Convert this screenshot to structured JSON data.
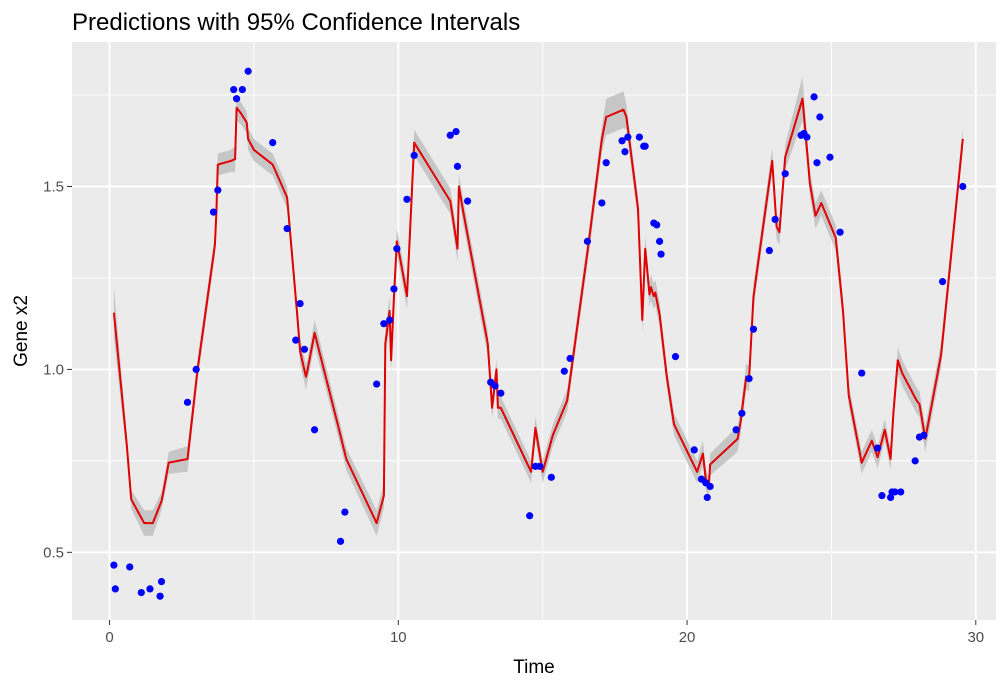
{
  "chart_data": {
    "type": "line",
    "title": "Predictions with 95% Confidence Intervals",
    "xlabel": "Time",
    "ylabel": "Gene x2",
    "xlim": [
      -1.3,
      30.7
    ],
    "ylim": [
      0.315,
      1.895
    ],
    "x_ticks": [
      0,
      10,
      20,
      30
    ],
    "x_tick_labels": [
      "0",
      "10",
      "20",
      "30"
    ],
    "y_ticks": [
      0.5,
      1.0,
      1.5
    ],
    "y_tick_labels": [
      "0.5",
      "1.0",
      "1.5"
    ],
    "grid": true,
    "legend": "none",
    "colors": {
      "panel_background": "#ebebeb",
      "grid": "#ffffff",
      "points": "#0000ff",
      "prediction_line": "#e00000",
      "ribbon": "#c2c2c2"
    },
    "series": [
      {
        "type": "ribbon_line",
        "x": [
          0.15,
          0.6,
          0.75,
          1.2,
          1.5,
          1.8,
          1.85,
          2.05,
          2.7,
          3.05,
          3.65,
          3.7,
          3.75,
          4.2,
          4.35,
          4.4,
          4.55,
          4.75,
          4.8,
          5.0,
          5.65,
          6.15,
          6.5,
          6.6,
          6.8,
          6.85,
          7.1,
          7.95,
          8.2,
          9.25,
          9.5,
          9.55,
          9.7,
          9.75,
          9.85,
          9.95,
          10.05,
          10.3,
          10.55,
          11.8,
          12.05,
          12.1,
          12.25,
          13.1,
          13.25,
          13.4,
          13.45,
          13.55,
          14.6,
          14.75,
          15.0,
          15.35,
          15.85,
          16.6,
          17.05,
          17.2,
          17.8,
          17.9,
          18.3,
          18.45,
          18.55,
          18.7,
          18.75,
          18.85,
          18.9,
          19.05,
          19.3,
          19.55,
          20.35,
          20.55,
          20.65,
          20.75,
          20.8,
          21.75,
          21.85,
          22.05,
          22.15,
          22.3,
          22.95,
          23.1,
          23.2,
          23.4,
          24.0,
          24.2,
          24.25,
          24.45,
          24.65,
          25.15,
          25.4,
          25.6,
          26.05,
          26.4,
          26.6,
          26.85,
          27.05,
          27.15,
          27.3,
          27.45,
          27.95,
          28.05,
          28.25,
          28.8,
          29.55
        ],
        "y": [
          1.155,
          0.79,
          0.645,
          0.58,
          0.58,
          0.64,
          0.66,
          0.745,
          0.755,
          1.0,
          1.34,
          1.43,
          1.56,
          1.57,
          1.575,
          1.715,
          1.7,
          1.675,
          1.63,
          1.6,
          1.56,
          1.47,
          1.15,
          1.05,
          0.98,
          0.995,
          1.1,
          0.835,
          0.755,
          0.58,
          0.655,
          1.07,
          1.16,
          1.025,
          1.2,
          1.35,
          1.31,
          1.2,
          1.62,
          1.46,
          1.33,
          1.5,
          1.43,
          1.07,
          0.895,
          1.0,
          0.895,
          0.895,
          0.72,
          0.84,
          0.72,
          0.82,
          0.915,
          1.35,
          1.63,
          1.69,
          1.71,
          1.69,
          1.44,
          1.135,
          1.33,
          1.205,
          1.225,
          1.2,
          1.21,
          1.15,
          0.98,
          0.85,
          0.72,
          0.77,
          0.7,
          0.675,
          0.74,
          0.81,
          0.855,
          0.98,
          0.975,
          1.2,
          1.57,
          1.39,
          1.375,
          1.58,
          1.74,
          1.56,
          1.51,
          1.42,
          1.455,
          1.36,
          1.16,
          0.93,
          0.745,
          0.805,
          0.76,
          0.835,
          0.755,
          0.885,
          1.025,
          0.99,
          0.915,
          0.905,
          0.81,
          1.04,
          1.63
        ],
        "ci_halfwidth": [
          0.07,
          0.03,
          0.025,
          0.035,
          0.035,
          0.025,
          0.025,
          0.03,
          0.035,
          0.03,
          0.03,
          0.03,
          0.03,
          0.03,
          0.035,
          0.035,
          0.03,
          0.03,
          0.03,
          0.03,
          0.03,
          0.03,
          0.03,
          0.035,
          0.035,
          0.03,
          0.035,
          0.03,
          0.03,
          0.035,
          0.035,
          0.04,
          0.04,
          0.035,
          0.035,
          0.035,
          0.035,
          0.035,
          0.035,
          0.035,
          0.035,
          0.035,
          0.035,
          0.035,
          0.03,
          0.03,
          0.03,
          0.03,
          0.03,
          0.03,
          0.03,
          0.03,
          0.03,
          0.035,
          0.035,
          0.05,
          0.05,
          0.035,
          0.035,
          0.035,
          0.035,
          0.035,
          0.035,
          0.035,
          0.035,
          0.035,
          0.03,
          0.03,
          0.03,
          0.035,
          0.03,
          0.03,
          0.03,
          0.035,
          0.035,
          0.035,
          0.035,
          0.035,
          0.035,
          0.035,
          0.035,
          0.035,
          0.06,
          0.035,
          0.035,
          0.035,
          0.035,
          0.035,
          0.035,
          0.03,
          0.03,
          0.03,
          0.03,
          0.03,
          0.03,
          0.035,
          0.035,
          0.035,
          0.035,
          0.035,
          0.035,
          0.035,
          0.03
        ]
      },
      {
        "type": "scatter",
        "points": [
          [
            0.15,
            0.465
          ],
          [
            0.2,
            0.4
          ],
          [
            0.7,
            0.46
          ],
          [
            1.1,
            0.39
          ],
          [
            1.4,
            0.4
          ],
          [
            1.75,
            0.38
          ],
          [
            1.8,
            0.42
          ],
          [
            2.7,
            0.91
          ],
          [
            3.0,
            1.0
          ],
          [
            3.6,
            1.43
          ],
          [
            3.75,
            1.49
          ],
          [
            4.3,
            1.765
          ],
          [
            4.4,
            1.74
          ],
          [
            4.6,
            1.765
          ],
          [
            4.8,
            1.815
          ],
          [
            5.65,
            1.62
          ],
          [
            6.15,
            1.385
          ],
          [
            6.45,
            1.08
          ],
          [
            6.6,
            1.18
          ],
          [
            6.75,
            1.055
          ],
          [
            7.1,
            0.835
          ],
          [
            8.0,
            0.53
          ],
          [
            8.15,
            0.61
          ],
          [
            9.25,
            0.96
          ],
          [
            9.5,
            1.125
          ],
          [
            9.7,
            1.135
          ],
          [
            9.85,
            1.22
          ],
          [
            9.95,
            1.33
          ],
          [
            10.3,
            1.465
          ],
          [
            10.55,
            1.585
          ],
          [
            11.8,
            1.64
          ],
          [
            12.0,
            1.65
          ],
          [
            12.05,
            1.555
          ],
          [
            12.4,
            1.46
          ],
          [
            13.2,
            0.965
          ],
          [
            13.35,
            0.955
          ],
          [
            13.55,
            0.935
          ],
          [
            14.55,
            0.6
          ],
          [
            14.75,
            0.735
          ],
          [
            14.9,
            0.735
          ],
          [
            15.3,
            0.705
          ],
          [
            15.75,
            0.995
          ],
          [
            15.95,
            1.03
          ],
          [
            16.55,
            1.35
          ],
          [
            17.05,
            1.455
          ],
          [
            17.2,
            1.565
          ],
          [
            17.75,
            1.625
          ],
          [
            17.85,
            1.595
          ],
          [
            17.95,
            1.635
          ],
          [
            18.35,
            1.635
          ],
          [
            18.5,
            1.61
          ],
          [
            18.55,
            1.61
          ],
          [
            18.85,
            1.4
          ],
          [
            18.95,
            1.395
          ],
          [
            19.05,
            1.35
          ],
          [
            19.1,
            1.315
          ],
          [
            19.6,
            1.035
          ],
          [
            20.25,
            0.78
          ],
          [
            20.5,
            0.7
          ],
          [
            20.65,
            0.69
          ],
          [
            20.7,
            0.65
          ],
          [
            20.8,
            0.68
          ],
          [
            21.7,
            0.835
          ],
          [
            21.9,
            0.88
          ],
          [
            22.15,
            0.975
          ],
          [
            22.3,
            1.11
          ],
          [
            22.85,
            1.325
          ],
          [
            23.05,
            1.41
          ],
          [
            23.4,
            1.535
          ],
          [
            23.95,
            1.64
          ],
          [
            24.05,
            1.645
          ],
          [
            24.15,
            1.635
          ],
          [
            24.4,
            1.745
          ],
          [
            24.5,
            1.565
          ],
          [
            24.6,
            1.69
          ],
          [
            24.95,
            1.58
          ],
          [
            25.3,
            1.375
          ],
          [
            26.05,
            0.99
          ],
          [
            26.6,
            0.785
          ],
          [
            26.75,
            0.655
          ],
          [
            27.05,
            0.65
          ],
          [
            27.1,
            0.665
          ],
          [
            27.2,
            0.665
          ],
          [
            27.4,
            0.665
          ],
          [
            27.9,
            0.75
          ],
          [
            28.05,
            0.815
          ],
          [
            28.2,
            0.82
          ],
          [
            28.85,
            1.24
          ],
          [
            29.55,
            1.5
          ]
        ]
      }
    ]
  }
}
